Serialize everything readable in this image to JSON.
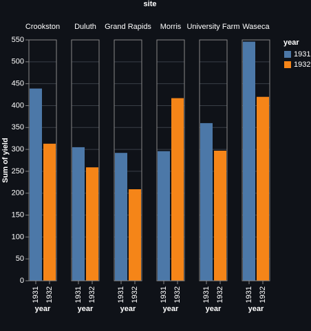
{
  "chart_data": {
    "type": "bar",
    "title": "site",
    "x_label": "year",
    "y_label": "Sum of yield",
    "legend_title": "year",
    "categories": [
      "Crookston",
      "Duluth",
      "Grand Rapids",
      "Morris",
      "University Farm",
      "Waseca"
    ],
    "series": [
      {
        "name": "1931",
        "color": "#4c78a8",
        "values": [
          439,
          305,
          292,
          296,
          360,
          546
        ]
      },
      {
        "name": "1932",
        "color": "#f58518",
        "values": [
          313,
          259,
          209,
          417,
          297,
          420
        ]
      }
    ],
    "ylim": [
      0,
      550
    ],
    "yticks": [
      0,
      50,
      100,
      150,
      200,
      250,
      300,
      350,
      400,
      450,
      500,
      550
    ],
    "grid": true,
    "legend": "right"
  }
}
